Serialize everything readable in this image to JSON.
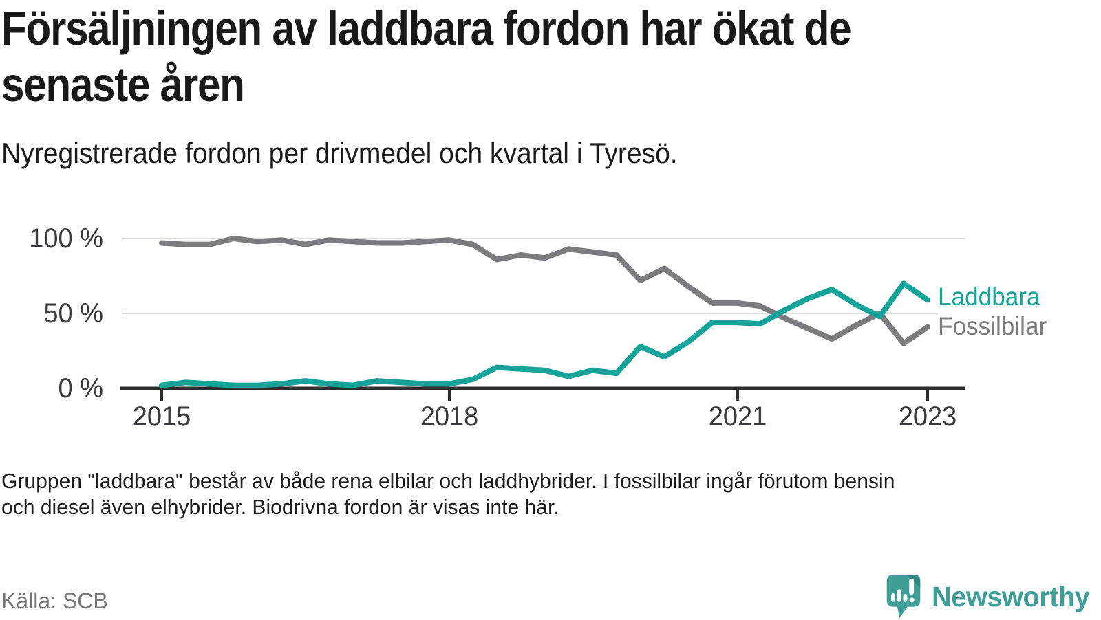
{
  "header": {
    "title": "Försäljningen av laddbara fordon har ökat de\nsenaste åren",
    "subtitle": "Nyregistrerade fordon per drivmedel och kvartal i Tyresö."
  },
  "chart_data": {
    "type": "line",
    "title": "Försäljningen av laddbara fordon har ökat de senaste åren",
    "subtitle": "Nyregistrerade fordon per drivmedel och kvartal i Tyresö.",
    "unit": "percent",
    "ylim": [
      0,
      100
    ],
    "grid": "horizontal",
    "legend_position": "right-end-of-lines",
    "x_tick_labels": [
      "2015",
      "2018",
      "2021",
      "2023"
    ],
    "y_tick_labels": [
      "0 %",
      "50 %",
      "100 %"
    ],
    "x": [
      "2015 Q1",
      "2015 Q2",
      "2015 Q3",
      "2015 Q4",
      "2016 Q1",
      "2016 Q2",
      "2016 Q3",
      "2016 Q4",
      "2017 Q1",
      "2017 Q2",
      "2017 Q3",
      "2017 Q4",
      "2018 Q1",
      "2018 Q2",
      "2018 Q3",
      "2018 Q4",
      "2019 Q1",
      "2019 Q2",
      "2019 Q3",
      "2019 Q4",
      "2020 Q1",
      "2020 Q2",
      "2020 Q3",
      "2020 Q4",
      "2021 Q1",
      "2021 Q2",
      "2021 Q3",
      "2021 Q4",
      "2022 Q1",
      "2022 Q2",
      "2022 Q3",
      "2022 Q4",
      "2023 Q1"
    ],
    "series": [
      {
        "name": "Laddbara",
        "color": "#16a49a",
        "values": [
          2,
          4,
          3,
          2,
          2,
          3,
          5,
          3,
          2,
          5,
          4,
          3,
          3,
          6,
          14,
          13,
          12,
          8,
          12,
          10,
          28,
          21,
          31,
          44,
          44,
          43,
          52,
          60,
          66,
          56,
          48,
          70,
          59
        ]
      },
      {
        "name": "Fossilbilar",
        "color": "#7b7b80",
        "values": [
          97,
          96,
          96,
          100,
          98,
          99,
          96,
          99,
          98,
          97,
          97,
          98,
          99,
          96,
          86,
          89,
          87,
          93,
          91,
          89,
          72,
          80,
          68,
          57,
          57,
          55,
          47,
          40,
          33,
          42,
          50,
          30,
          41
        ]
      }
    ]
  },
  "footnote": "Gruppen \"laddbara\" består av både rena elbilar och laddhybrider. I fossilbilar ingår förutom bensin\noch diesel även elhybrider. Biodrivna fordon är visas inte här.",
  "source": "Källa: SCB",
  "logo": {
    "text": "Newsworthy"
  },
  "colors": {
    "accent_teal": "#16a49a",
    "line_gray": "#7b7b80",
    "axis": "#2d2d2d",
    "gridline": "#dcdcdc",
    "text_dark": "#191919",
    "text_muted": "#74747a",
    "logo_teal": "#3e9d97"
  }
}
